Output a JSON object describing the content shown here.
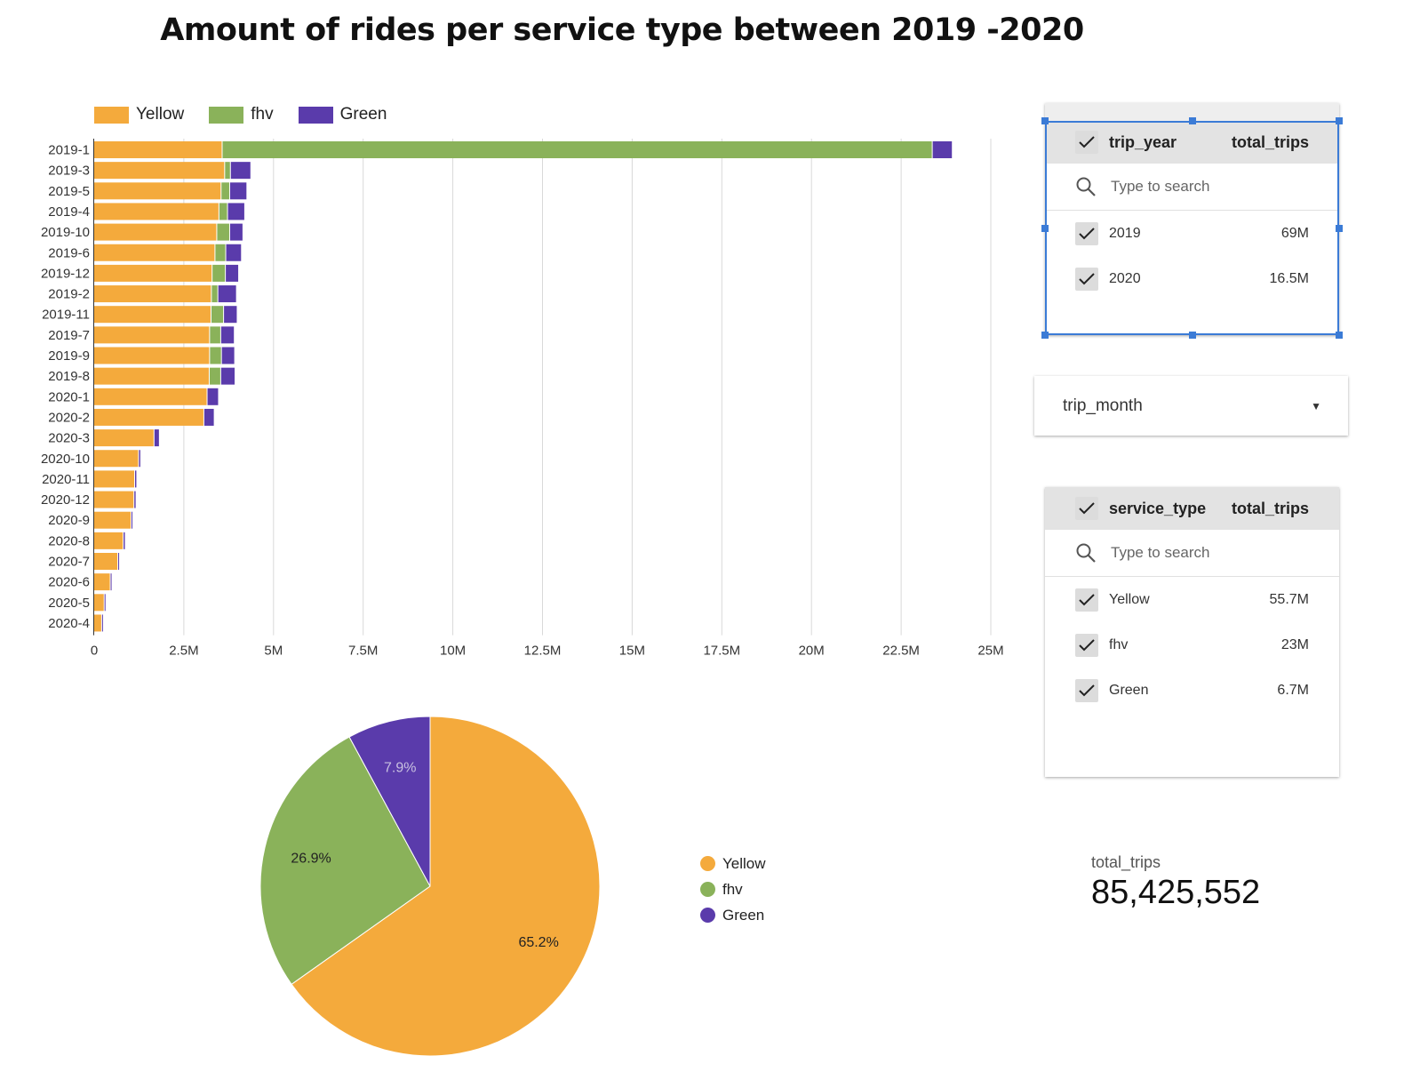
{
  "title": "Amount of rides per service type between 2019 -2020",
  "colors": {
    "Yellow": "#f4aa3c",
    "fhv": "#8ab25a",
    "Green": "#5a3bab"
  },
  "legend": {
    "items": [
      "Yellow",
      "fhv",
      "Green"
    ]
  },
  "chart_data": [
    {
      "type": "bar",
      "orientation": "horizontal",
      "stacked": true,
      "title": "",
      "categories": [
        "2019-1",
        "2019-3",
        "2019-5",
        "2019-4",
        "2019-10",
        "2019-6",
        "2019-12",
        "2019-2",
        "2019-11",
        "2019-7",
        "2019-9",
        "2019-8",
        "2020-1",
        "2020-2",
        "2020-3",
        "2020-10",
        "2020-11",
        "2020-12",
        "2020-9",
        "2020-8",
        "2020-7",
        "2020-6",
        "2020-5",
        "2020-4"
      ],
      "series": [
        {
          "name": "Yellow",
          "values": [
            3580000,
            3650000,
            3550000,
            3490000,
            3430000,
            3380000,
            3300000,
            3280000,
            3270000,
            3230000,
            3230000,
            3220000,
            3160000,
            3070000,
            1680000,
            1250000,
            1140000,
            1120000,
            1040000,
            820000,
            670000,
            460000,
            290000,
            220000
          ]
        },
        {
          "name": "fhv",
          "values": [
            19800000,
            160000,
            240000,
            240000,
            360000,
            300000,
            370000,
            180000,
            350000,
            310000,
            330000,
            320000,
            0,
            0,
            0,
            0,
            0,
            0,
            0,
            0,
            0,
            0,
            0,
            0
          ]
        },
        {
          "name": "Green",
          "values": [
            560000,
            570000,
            480000,
            480000,
            370000,
            440000,
            370000,
            520000,
            380000,
            380000,
            370000,
            400000,
            320000,
            290000,
            150000,
            60000,
            60000,
            60000,
            50000,
            60000,
            40000,
            40000,
            40000,
            40000
          ]
        }
      ],
      "xlim": [
        0,
        25000000
      ],
      "xticks": [
        "0",
        "2.5M",
        "5M",
        "7.5M",
        "10M",
        "12.5M",
        "15M",
        "17.5M",
        "20M",
        "22.5M",
        "25M"
      ],
      "grid": true,
      "legend_position": "top-left"
    },
    {
      "type": "pie",
      "labels": [
        "Yellow",
        "fhv",
        "Green"
      ],
      "values": [
        65.2,
        26.9,
        7.9
      ],
      "value_labels": [
        "65.2%",
        "26.9%",
        "7.9%"
      ],
      "legend_position": "right"
    }
  ],
  "year_filter": {
    "col1": "trip_year",
    "col2": "total_trips",
    "search_placeholder": "Type to search",
    "options": [
      {
        "label": "2019",
        "value": "69M",
        "checked": true
      },
      {
        "label": "2020",
        "value": "16.5M",
        "checked": true
      }
    ]
  },
  "month_dropdown": {
    "label": "trip_month"
  },
  "service_filter": {
    "col1": "service_type",
    "col2": "total_trips",
    "search_placeholder": "Type to search",
    "options": [
      {
        "label": "Yellow",
        "value": "55.7M",
        "checked": true
      },
      {
        "label": "fhv",
        "value": "23M",
        "checked": true
      },
      {
        "label": "Green",
        "value": "6.7M",
        "checked": true
      }
    ]
  },
  "scorecard": {
    "label": "total_trips",
    "value": "85,425,552"
  }
}
